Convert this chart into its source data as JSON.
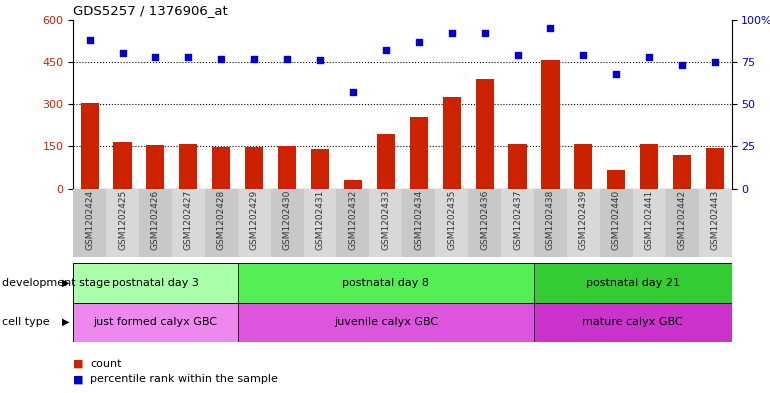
{
  "title": "GDS5257 / 1376906_at",
  "samples": [
    "GSM1202424",
    "GSM1202425",
    "GSM1202426",
    "GSM1202427",
    "GSM1202428",
    "GSM1202429",
    "GSM1202430",
    "GSM1202431",
    "GSM1202432",
    "GSM1202433",
    "GSM1202434",
    "GSM1202435",
    "GSM1202436",
    "GSM1202437",
    "GSM1202438",
    "GSM1202439",
    "GSM1202440",
    "GSM1202441",
    "GSM1202442",
    "GSM1202443"
  ],
  "counts": [
    305,
    165,
    155,
    160,
    148,
    148,
    150,
    140,
    30,
    195,
    255,
    325,
    390,
    160,
    455,
    160,
    65,
    160,
    120,
    145
  ],
  "percentiles": [
    88,
    80,
    78,
    78,
    77,
    77,
    77,
    76,
    57,
    82,
    87,
    92,
    92,
    79,
    95,
    79,
    68,
    78,
    73,
    75
  ],
  "left_ylim": [
    0,
    600
  ],
  "right_ylim": [
    0,
    100
  ],
  "left_yticks": [
    0,
    150,
    300,
    450,
    600
  ],
  "right_yticks": [
    0,
    25,
    50,
    75,
    100
  ],
  "bar_color": "#cc2200",
  "dot_color": "#0000cc",
  "grid_color": "#000000",
  "development_stages": [
    {
      "label": "postnatal day 3",
      "start": 0,
      "end": 5,
      "color": "#aaffaa"
    },
    {
      "label": "postnatal day 8",
      "start": 5,
      "end": 14,
      "color": "#55ee55"
    },
    {
      "label": "postnatal day 21",
      "start": 14,
      "end": 20,
      "color": "#33cc33"
    }
  ],
  "cell_types": [
    {
      "label": "just formed calyx GBC",
      "start": 0,
      "end": 5,
      "color": "#ee88ee"
    },
    {
      "label": "juvenile calyx GBC",
      "start": 5,
      "end": 14,
      "color": "#dd55dd"
    },
    {
      "label": "mature calyx GBC",
      "start": 14,
      "end": 20,
      "color": "#cc33cc"
    }
  ],
  "dev_stage_label": "development stage",
  "cell_type_label": "cell type",
  "legend_count_label": "count",
  "legend_pct_label": "percentile rank within the sample",
  "bg_color": "#ffffff",
  "xtick_bg_color": "#cccccc",
  "right_ytick_labels": [
    "0",
    "25",
    "50",
    "75",
    "100%"
  ]
}
